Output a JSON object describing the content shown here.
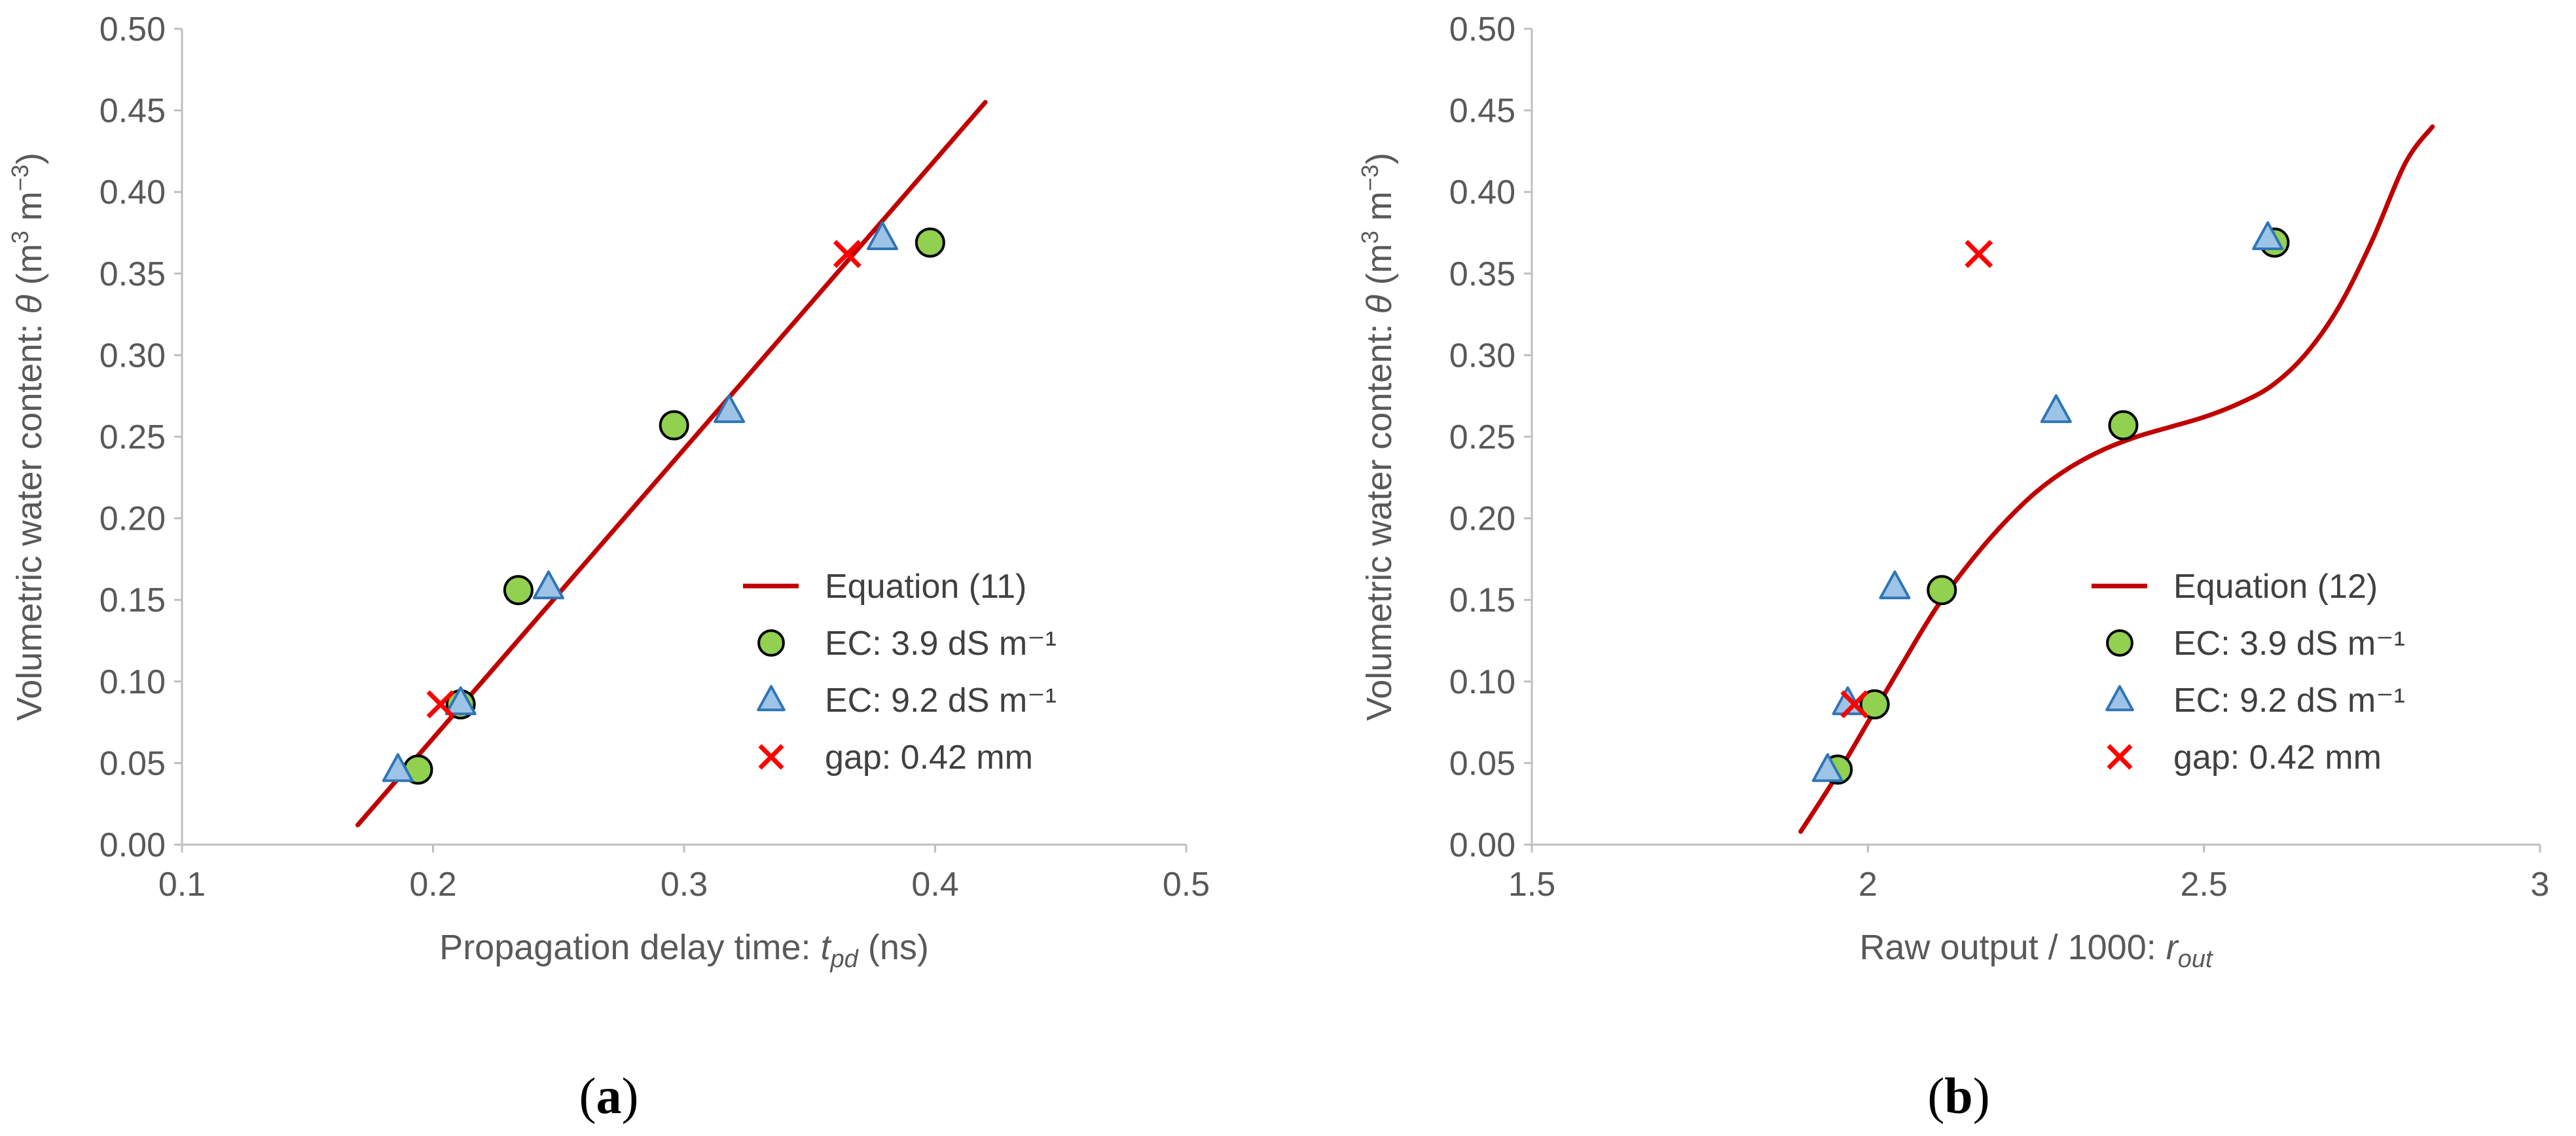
{
  "chart_data": [
    {
      "type": "scatter",
      "panel_label": "a",
      "xlabel": {
        "main": "Propagation delay time: ",
        "italic": "t",
        "sub": "pd",
        "unit": " (ns)"
      },
      "ylabel": {
        "main": "Volumetric water content: ",
        "italic": "θ",
        "unit_pre": " (m",
        "sup1": "3",
        "unit_mid": " m",
        "sup2": "−3",
        "unit_post": ")"
      },
      "xlim": [
        0.1,
        0.5
      ],
      "ylim": [
        0,
        0.5
      ],
      "xticks": [
        0.1,
        0.2,
        0.3,
        0.4,
        0.5
      ],
      "xtick_labels": [
        "0.1",
        "0.2",
        "0.3",
        "0.4",
        "0.5"
      ],
      "yticks": [
        0,
        0.05,
        0.1,
        0.15,
        0.2,
        0.25,
        0.3,
        0.35,
        0.4,
        0.45,
        0.5
      ],
      "ytick_labels": [
        "0.00",
        "0.05",
        "0.10",
        "0.15",
        "0.20",
        "0.25",
        "0.30",
        "0.35",
        "0.40",
        "0.45",
        "0.50"
      ],
      "grid": false,
      "legend_position": "bottom-right",
      "series": [
        {
          "name": "Equation (11)",
          "kind": "line",
          "color": "#C00000",
          "x": [
            0.17,
            0.42
          ],
          "y": [
            0.012,
            0.455
          ]
        },
        {
          "name": "EC: 3.9 dS m⁻¹",
          "kind": "circle",
          "fill": "#92D050",
          "stroke": "#000000",
          "x": [
            0.194,
            0.211,
            0.234,
            0.296,
            0.398
          ],
          "y": [
            0.046,
            0.086,
            0.156,
            0.257,
            0.369
          ]
        },
        {
          "name": "EC: 9.2 dS m⁻¹",
          "kind": "triangle",
          "fill": "#9DC3E6",
          "stroke": "#2E75B6",
          "x": [
            0.186,
            0.211,
            0.246,
            0.318,
            0.379
          ],
          "y": [
            0.046,
            0.087,
            0.158,
            0.266,
            0.372
          ]
        },
        {
          "name": "gap: 0.42 mm",
          "kind": "cross",
          "color": "#FF0000",
          "x": [
            0.203,
            0.365
          ],
          "y": [
            0.086,
            0.362
          ]
        }
      ]
    },
    {
      "type": "scatter",
      "panel_label": "b",
      "xlabel": {
        "main": "Raw output / 1000: ",
        "italic": "r",
        "sub": "out",
        "unit": ""
      },
      "ylabel": {
        "main": "Volumetric water content: ",
        "italic": "θ",
        "unit_pre": " (m",
        "sup1": "3",
        "unit_mid": " m",
        "sup2": "−3",
        "unit_post": ")"
      },
      "xlim": [
        1.5,
        3
      ],
      "ylim": [
        0,
        0.5
      ],
      "xticks": [
        1.5,
        2,
        2.5,
        3
      ],
      "xtick_labels": [
        "1.5",
        "2",
        "2.5",
        "3"
      ],
      "yticks": [
        0,
        0.05,
        0.1,
        0.15,
        0.2,
        0.25,
        0.3,
        0.35,
        0.4,
        0.45,
        0.5
      ],
      "ytick_labels": [
        "0.00",
        "0.05",
        "0.10",
        "0.15",
        "0.20",
        "0.25",
        "0.30",
        "0.35",
        "0.40",
        "0.45",
        "0.50"
      ],
      "grid": false,
      "legend_position": "bottom-right",
      "series": [
        {
          "name": "Equation (12)",
          "kind": "line",
          "color": "#C00000",
          "x": [
            1.9,
            1.95,
            2.0,
            2.05,
            2.1,
            2.15,
            2.2,
            2.25,
            2.3,
            2.35,
            2.4,
            2.45,
            2.5,
            2.55,
            2.6,
            2.65,
            2.7,
            2.75,
            2.8,
            2.84
          ],
          "y": [
            0.008,
            0.04,
            0.075,
            0.11,
            0.144,
            0.172,
            0.196,
            0.216,
            0.231,
            0.242,
            0.25,
            0.256,
            0.262,
            0.27,
            0.281,
            0.3,
            0.329,
            0.37,
            0.418,
            0.44
          ]
        },
        {
          "name": "EC: 3.9 dS m⁻¹",
          "kind": "circle",
          "fill": "#92D050",
          "stroke": "#000000",
          "x": [
            1.955,
            2.01,
            2.11,
            2.38,
            2.605
          ],
          "y": [
            0.046,
            0.086,
            0.156,
            0.257,
            0.369
          ]
        },
        {
          "name": "EC: 9.2 dS m⁻¹",
          "kind": "triangle",
          "fill": "#9DC3E6",
          "stroke": "#2E75B6",
          "x": [
            1.94,
            1.97,
            2.04,
            2.28,
            2.595
          ],
          "y": [
            0.046,
            0.087,
            0.158,
            0.266,
            0.372
          ]
        },
        {
          "name": "gap: 0.42 mm",
          "kind": "cross",
          "color": "#FF0000",
          "x": [
            1.98,
            2.165
          ],
          "y": [
            0.086,
            0.362
          ]
        }
      ]
    }
  ]
}
